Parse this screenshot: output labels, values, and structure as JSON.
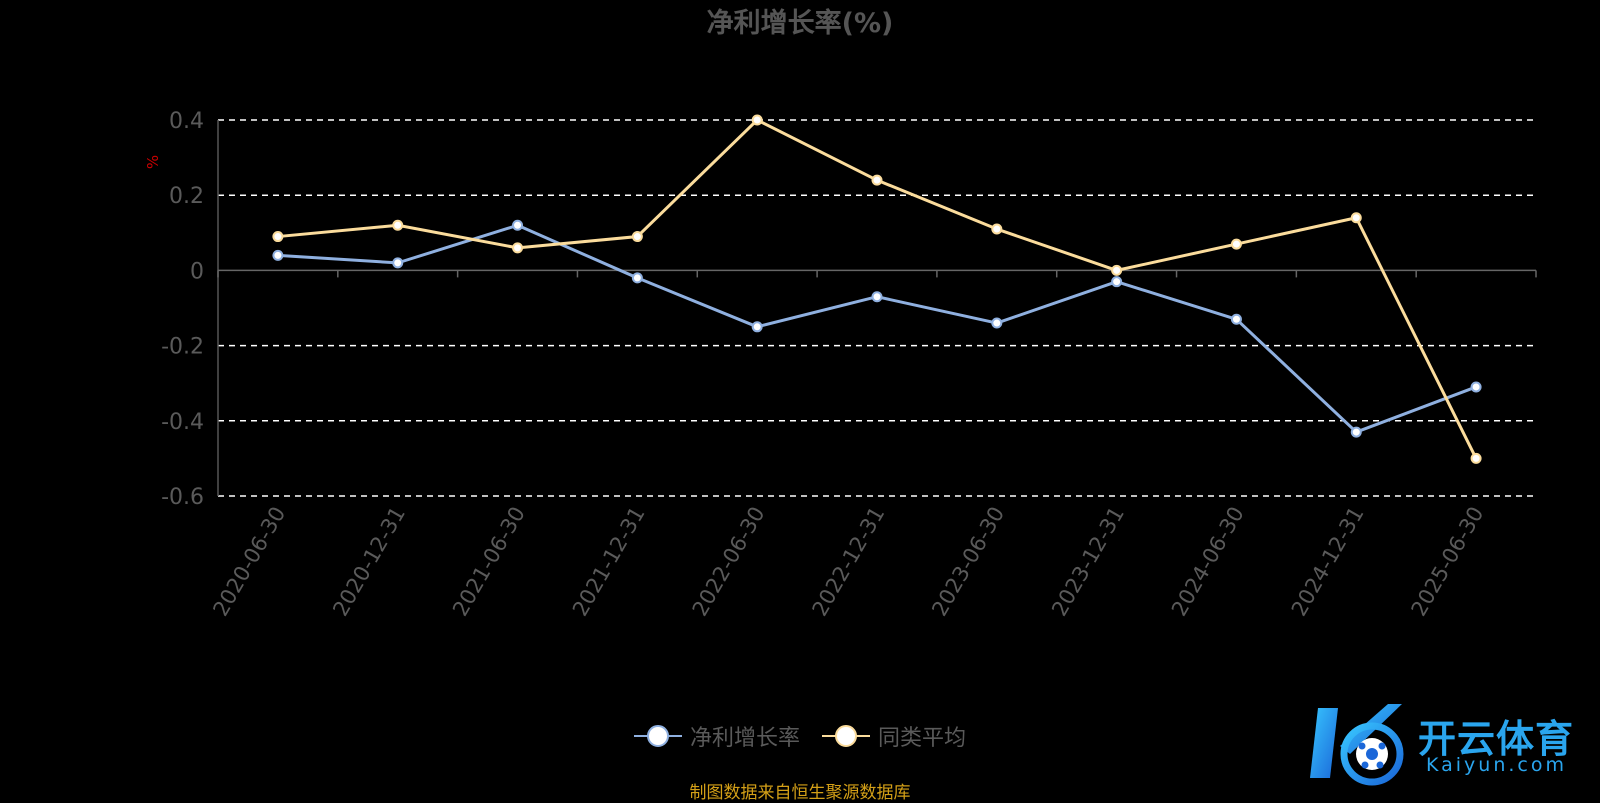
{
  "chart_data": {
    "type": "line",
    "title": "净利增长率(%)",
    "ylabel": "%",
    "ylim": [
      -0.6,
      0.4
    ],
    "yticks": [
      "0.4",
      "0.2",
      "0",
      "-0.2",
      "-0.4",
      "-0.6"
    ],
    "grid": true,
    "legend_position": "bottom",
    "categories": [
      "2020-06-30",
      "2020-12-31",
      "2021-06-30",
      "2021-12-31",
      "2022-06-30",
      "2022-12-31",
      "2023-06-30",
      "2023-12-31",
      "2024-06-30",
      "2024-12-31",
      "2025-06-30"
    ],
    "series": [
      {
        "name": "净利增长率",
        "color": "#8fb0e0",
        "values": [
          0.04,
          0.02,
          0.12,
          -0.02,
          -0.15,
          -0.07,
          -0.14,
          -0.03,
          -0.13,
          -0.43,
          -0.31
        ]
      },
      {
        "name": "同类平均",
        "color": "#fbdc9c",
        "values": [
          0.09,
          0.12,
          0.06,
          0.09,
          0.4,
          0.24,
          0.11,
          0.0,
          0.07,
          0.14,
          -0.5
        ]
      }
    ]
  },
  "source_note": "制图数据来自恒生聚源数据库",
  "logo": {
    "cn": "开云体育",
    "en": "Kaiyun.com"
  }
}
